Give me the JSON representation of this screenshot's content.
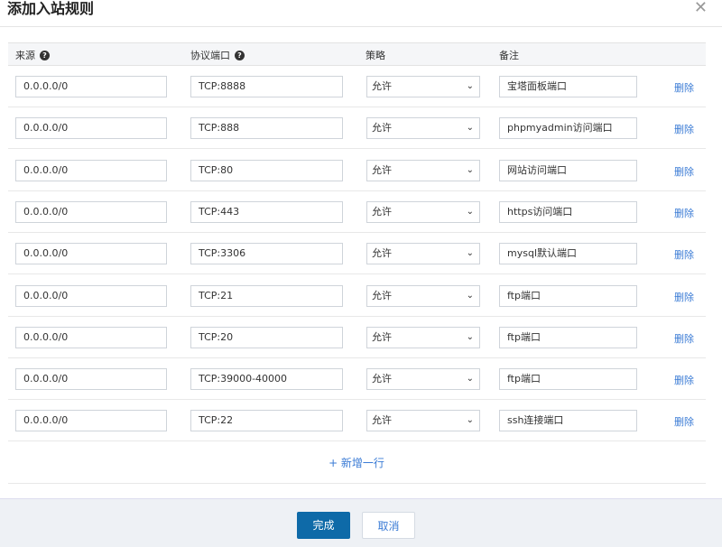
{
  "dialog": {
    "title": "添加入站规则",
    "close_icon": "close-icon"
  },
  "columns": {
    "source": "来源",
    "port": "协议端口",
    "policy": "策略",
    "remark": "备注"
  },
  "rows": [
    {
      "source": "0.0.0.0/0",
      "port": "TCP:8888",
      "policy": "允许",
      "remark": "宝塔面板端口",
      "delete": "删除"
    },
    {
      "source": "0.0.0.0/0",
      "port": "TCP:888",
      "policy": "允许",
      "remark": "phpmyadmin访问端口",
      "delete": "删除"
    },
    {
      "source": "0.0.0.0/0",
      "port": "TCP:80",
      "policy": "允许",
      "remark": "网站访问端口",
      "delete": "删除"
    },
    {
      "source": "0.0.0.0/0",
      "port": "TCP:443",
      "policy": "允许",
      "remark": "https访问端口",
      "delete": "删除"
    },
    {
      "source": "0.0.0.0/0",
      "port": "TCP:3306",
      "policy": "允许",
      "remark": "mysql默认端口",
      "delete": "删除"
    },
    {
      "source": "0.0.0.0/0",
      "port": "TCP:21",
      "policy": "允许",
      "remark": "ftp端口",
      "delete": "删除"
    },
    {
      "source": "0.0.0.0/0",
      "port": "TCP:20",
      "policy": "允许",
      "remark": "ftp端口",
      "delete": "删除"
    },
    {
      "source": "0.0.0.0/0",
      "port": "TCP:39000-40000",
      "policy": "允许",
      "remark": "ftp端口",
      "delete": "删除"
    },
    {
      "source": "0.0.0.0/0",
      "port": "TCP:22",
      "policy": "允许",
      "remark": "ssh连接端口",
      "delete": "删除"
    }
  ],
  "add_row": "+ 新增一行",
  "footer": {
    "ok": "完成",
    "cancel": "取消"
  },
  "colors": {
    "primary": "#0e6aa8",
    "link": "#3a7bd5"
  }
}
